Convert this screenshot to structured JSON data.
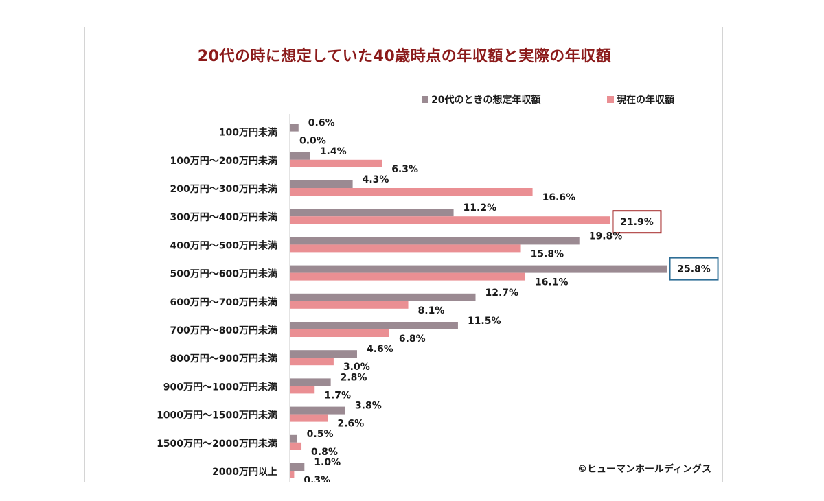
{
  "chart_data": {
    "type": "bar",
    "orientation": "horizontal",
    "title": "20代の時に想定していた40歳時点の年収額と実際の年収額",
    "categories": [
      "100万円未満",
      "100万円～200万円未満",
      "200万円～300万円未満",
      "300万円～400万円未満",
      "400万円～500万円未満",
      "500万円～600万円未満",
      "600万円～700万円未満",
      "700万円～800万円未満",
      "800万円～900万円未満",
      "900万円～1000万円未満",
      "1000万円～1500万円未満",
      "1500万円～2000万円未満",
      "2000万円以上"
    ],
    "series": [
      {
        "name": "20代のときの想定年収額",
        "color": "#9b8a92",
        "values": [
          0.6,
          1.4,
          4.3,
          11.2,
          19.8,
          25.8,
          12.7,
          11.5,
          4.6,
          2.8,
          3.8,
          0.5,
          1.0
        ],
        "labels": [
          "0.6%",
          "1.4%",
          "4.3%",
          "11.2%",
          "19.8%",
          "25.8%",
          "12.7%",
          "11.5%",
          "4.6%",
          "2.8%",
          "3.8%",
          "0.5%",
          "1.0%"
        ]
      },
      {
        "name": "現在の年収額",
        "color": "#ea8f93",
        "values": [
          0.0,
          6.3,
          16.6,
          21.9,
          15.8,
          16.1,
          8.1,
          6.8,
          3.0,
          1.7,
          2.6,
          0.8,
          0.3
        ],
        "labels": [
          "0.0%",
          "6.3%",
          "16.6%",
          "21.9%",
          "15.8%",
          "16.1%",
          "8.1%",
          "6.8%",
          "3.0%",
          "1.7%",
          "2.6%",
          "0.8%",
          "0.3%"
        ]
      }
    ],
    "xlim": [
      0,
      26
    ],
    "legend_position": "top-right",
    "highlights": [
      {
        "series": 1,
        "index": 3,
        "color": "#a52a2a"
      },
      {
        "series": 0,
        "index": 5,
        "color": "#2e6e96"
      }
    ],
    "credit": "©ヒューマンホールディングス"
  }
}
